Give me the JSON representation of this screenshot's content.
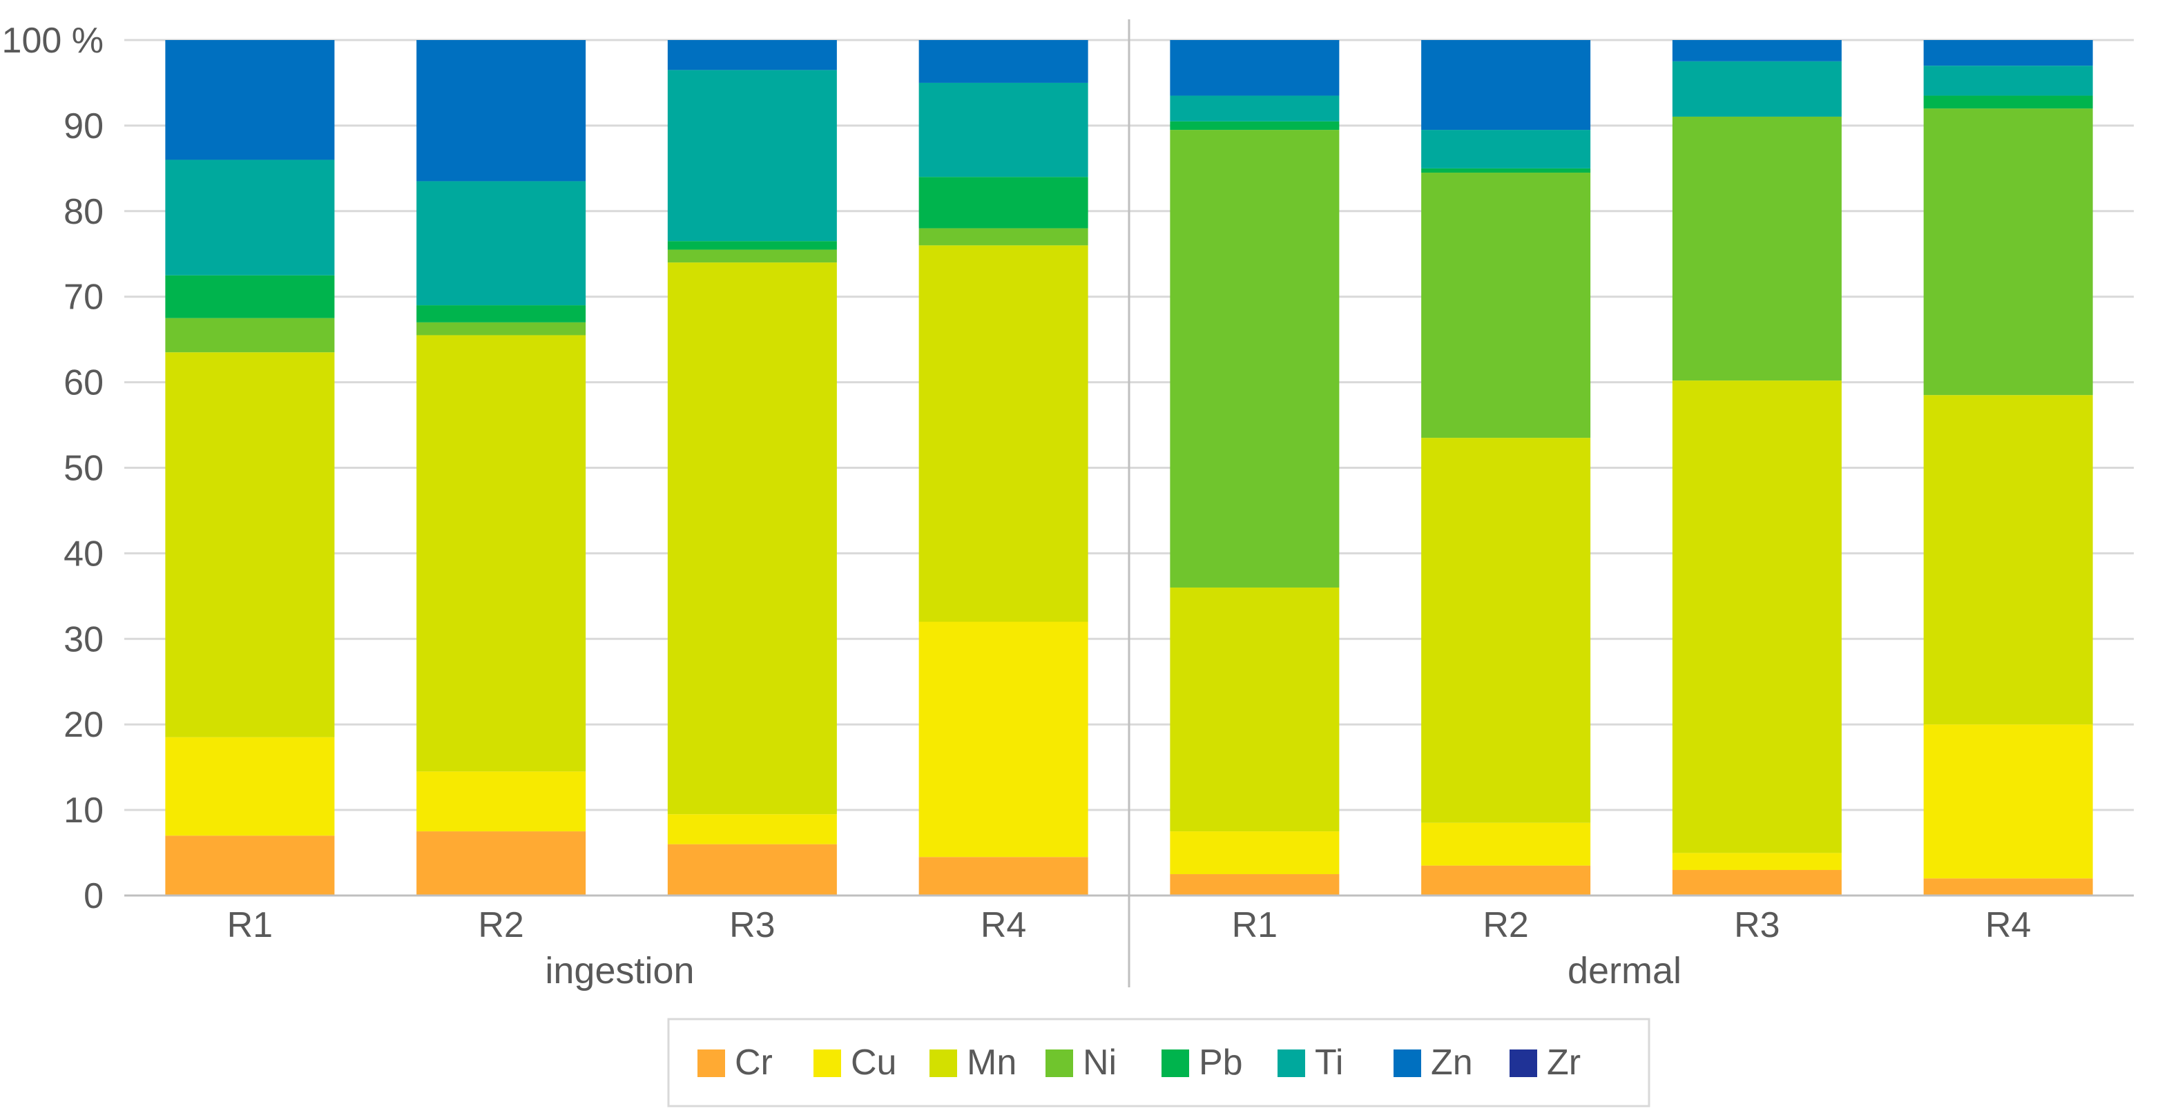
{
  "chart_data": {
    "type": "bar",
    "stacked": true,
    "percent": true,
    "title": "",
    "xlabel": "",
    "ylabel": "",
    "ylim": [
      0,
      100
    ],
    "y_ticks": [
      {
        "value": 0,
        "label": "0"
      },
      {
        "value": 10,
        "label": "10"
      },
      {
        "value": 20,
        "label": "20"
      },
      {
        "value": 30,
        "label": "30"
      },
      {
        "value": 40,
        "label": "40"
      },
      {
        "value": 50,
        "label": "50"
      },
      {
        "value": 60,
        "label": "60"
      },
      {
        "value": 70,
        "label": "70"
      },
      {
        "value": 80,
        "label": "80"
      },
      {
        "value": 90,
        "label": "90"
      },
      {
        "value": 100,
        "label": "100 %"
      }
    ],
    "groups": [
      {
        "name": "ingestion",
        "categories": [
          "R1",
          "R2",
          "R3",
          "R4"
        ]
      },
      {
        "name": "dermal",
        "categories": [
          "R1",
          "R2",
          "R3",
          "R4"
        ]
      }
    ],
    "series": [
      {
        "name": "Cr",
        "color": "#FFAA33",
        "values": [
          7,
          7.5,
          6,
          4.5,
          2.5,
          3.5,
          3,
          2
        ]
      },
      {
        "name": "Cu",
        "color": "#F7EA00",
        "values": [
          11.5,
          7,
          3.5,
          27.5,
          5,
          5,
          2,
          18
        ]
      },
      {
        "name": "Mn",
        "color": "#D3E000",
        "values": [
          45,
          51,
          64.5,
          44,
          28.5,
          45,
          55.5,
          38.5
        ]
      },
      {
        "name": "Ni",
        "color": "#70C52D",
        "values": [
          4,
          1.5,
          1.5,
          2,
          53.5,
          31,
          31,
          33.5
        ]
      },
      {
        "name": "Pb",
        "color": "#00B44D",
        "values": [
          5,
          2,
          1,
          6,
          1,
          0.5,
          0,
          1.5
        ]
      },
      {
        "name": "Ti",
        "color": "#00A99D",
        "values": [
          13.5,
          14.5,
          20,
          11,
          3,
          4.5,
          6.5,
          3.5
        ]
      },
      {
        "name": "Zn",
        "color": "#0070C0",
        "values": [
          14,
          16.5,
          3.5,
          5,
          6.5,
          10.5,
          2.5,
          3
        ]
      },
      {
        "name": "Zr",
        "color": "#1F3296",
        "values": [
          0,
          0,
          0,
          0,
          0,
          0,
          0,
          0
        ]
      }
    ],
    "legend_position": "bottom",
    "grid": true,
    "gridline_color": "#D9D9D9",
    "axis_color": "#BFBFBF"
  }
}
